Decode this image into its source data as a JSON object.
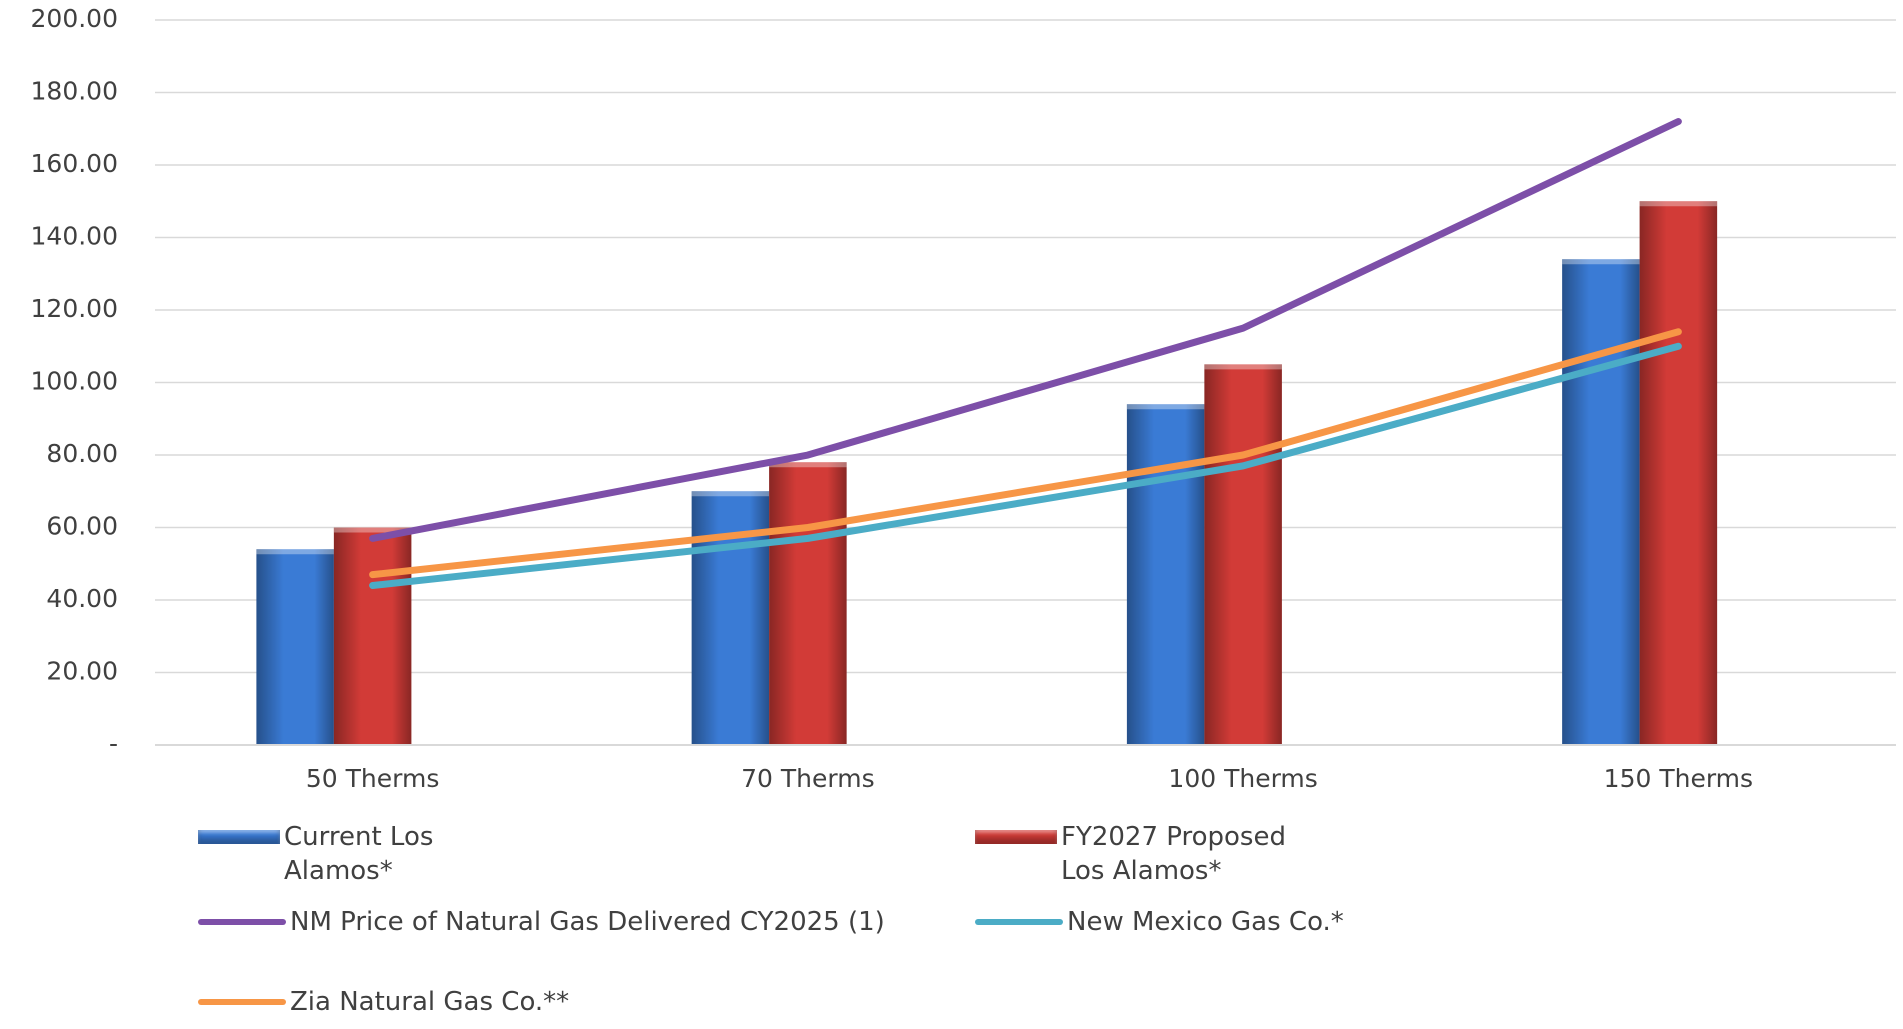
{
  "chart_data": {
    "type": "bar_line",
    "categories": [
      "50 Therms",
      "70 Therms",
      "100 Therms",
      "150 Therms"
    ],
    "series": [
      {
        "name": "Current Los Alamos*",
        "type": "bar",
        "color": "#3a7bd5",
        "values": [
          54,
          70,
          94,
          134
        ]
      },
      {
        "name": "FY2027 Proposed Los Alamos*",
        "type": "bar",
        "color": "#d23b37",
        "values": [
          60,
          78,
          105,
          150
        ]
      },
      {
        "name": "NM Price of Natural Gas Delivered CY2025 (1)",
        "type": "line",
        "color": "#7d4fa8",
        "values": [
          57,
          80,
          115,
          172
        ]
      },
      {
        "name": "New Mexico Gas Co.*",
        "type": "line",
        "color": "#4bacc6",
        "values": [
          44,
          57,
          77,
          110
        ]
      },
      {
        "name": "Zia Natural Gas Co.**",
        "type": "line",
        "color": "#f79646",
        "values": [
          47,
          60,
          80,
          114
        ]
      }
    ],
    "ylim": [
      0,
      200
    ],
    "yticks": [
      {
        "value": 0,
        "label": "-"
      },
      {
        "value": 20,
        "label": "20.00"
      },
      {
        "value": 40,
        "label": "40.00"
      },
      {
        "value": 60,
        "label": "60.00"
      },
      {
        "value": 80,
        "label": "80.00"
      },
      {
        "value": 100,
        "label": "100.00"
      },
      {
        "value": 120,
        "label": "120.00"
      },
      {
        "value": 140,
        "label": "140.00"
      },
      {
        "value": 160,
        "label": "160.00"
      },
      {
        "value": 180,
        "label": "180.00"
      },
      {
        "value": 200,
        "label": "200.00"
      }
    ],
    "grid": true,
    "legend": "bottom"
  }
}
